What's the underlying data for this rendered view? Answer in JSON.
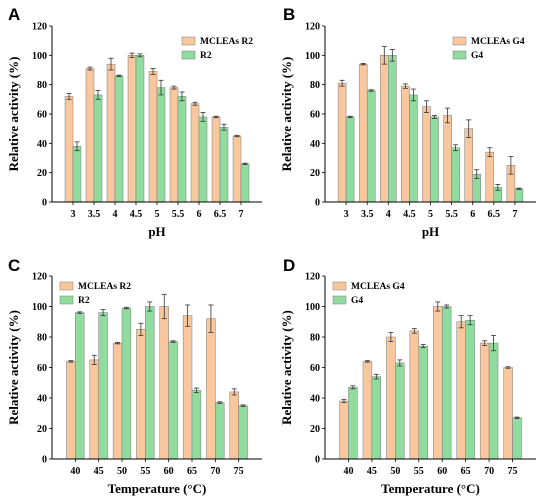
{
  "colors": {
    "series1": "#f9c79e",
    "series2": "#8fdc9e",
    "edge": "#7a7a7a"
  },
  "chart_data": [
    {
      "panel": "A",
      "type": "bar",
      "xlabel": "pH",
      "ylabel": "Relative activity (%)",
      "ylim": [
        0,
        120
      ],
      "yticks": [
        0,
        20,
        40,
        60,
        80,
        100,
        120
      ],
      "legend": "top-right",
      "categories": [
        "3",
        "3.5",
        "4",
        "4.5",
        "5",
        "5.5",
        "6",
        "6.5",
        "7"
      ],
      "series": [
        {
          "name": "MCLEAs R2",
          "values": [
            72,
            91,
            94,
            100,
            89,
            78,
            67,
            58,
            45
          ],
          "errors": [
            2,
            1,
            4,
            1.5,
            2,
            1,
            1,
            0.5,
            0.5
          ]
        },
        {
          "name": "R2",
          "values": [
            38,
            73,
            86,
            100,
            78,
            72,
            58,
            51,
            26
          ],
          "errors": [
            3,
            3,
            0.5,
            1,
            5,
            3,
            3,
            2,
            0.5
          ]
        }
      ]
    },
    {
      "panel": "B",
      "type": "bar",
      "xlabel": "pH",
      "ylabel": "Relative activity (%)",
      "ylim": [
        0,
        120
      ],
      "yticks": [
        0,
        20,
        40,
        60,
        80,
        100,
        120
      ],
      "legend": "top-right",
      "categories": [
        "3",
        "3.5",
        "4",
        "4.5",
        "5",
        "5.5",
        "6",
        "6.5",
        "7"
      ],
      "series": [
        {
          "name": "MCLEAs G4",
          "values": [
            81,
            94,
            100,
            79,
            65,
            59,
            50,
            34,
            25
          ],
          "errors": [
            2,
            0.5,
            6,
            1.5,
            4,
            5,
            6,
            3,
            6
          ]
        },
        {
          "name": "G4",
          "values": [
            58,
            76,
            100,
            73,
            58,
            37,
            19,
            10,
            9
          ],
          "errors": [
            0.5,
            0.5,
            4,
            4,
            1,
            2,
            3,
            2,
            0.5
          ]
        }
      ]
    },
    {
      "panel": "C",
      "type": "bar",
      "xlabel": "Temperature (°C)",
      "ylabel": "Relative activity (%)",
      "ylim": [
        0,
        120
      ],
      "yticks": [
        0,
        20,
        40,
        60,
        80,
        100,
        120
      ],
      "legend": "top-left",
      "categories": [
        "40",
        "45",
        "50",
        "55",
        "60",
        "65",
        "70",
        "75"
      ],
      "series": [
        {
          "name": "MCLEAs R2",
          "values": [
            64,
            65,
            76,
            85,
            100,
            94,
            92,
            44
          ],
          "errors": [
            0.5,
            3,
            0.5,
            4,
            8,
            7,
            9,
            2
          ]
        },
        {
          "name": "R2",
          "values": [
            96,
            96,
            99,
            100,
            77,
            45,
            37,
            35
          ],
          "errors": [
            0.5,
            2,
            0.5,
            3,
            0.5,
            1.5,
            0.5,
            0.5
          ]
        }
      ]
    },
    {
      "panel": "D",
      "type": "bar",
      "xlabel": "Temperature (°C)",
      "ylabel": "Relative activity (%)",
      "ylim": [
        0,
        120
      ],
      "yticks": [
        0,
        20,
        40,
        60,
        80,
        100,
        120
      ],
      "legend": "top-left",
      "categories": [
        "40",
        "45",
        "50",
        "55",
        "60",
        "65",
        "70",
        "75"
      ],
      "series": [
        {
          "name": "MCLEAs G4",
          "values": [
            38,
            64,
            80,
            84,
            100,
            90,
            76,
            60
          ],
          "errors": [
            1,
            0.5,
            3,
            1.5,
            3,
            4,
            1.5,
            0.5
          ]
        },
        {
          "name": "G4",
          "values": [
            47,
            54,
            63,
            74,
            100,
            91,
            76,
            27
          ],
          "errors": [
            1,
            1.5,
            2,
            1,
            1,
            3,
            5,
            0.5
          ]
        }
      ]
    }
  ]
}
